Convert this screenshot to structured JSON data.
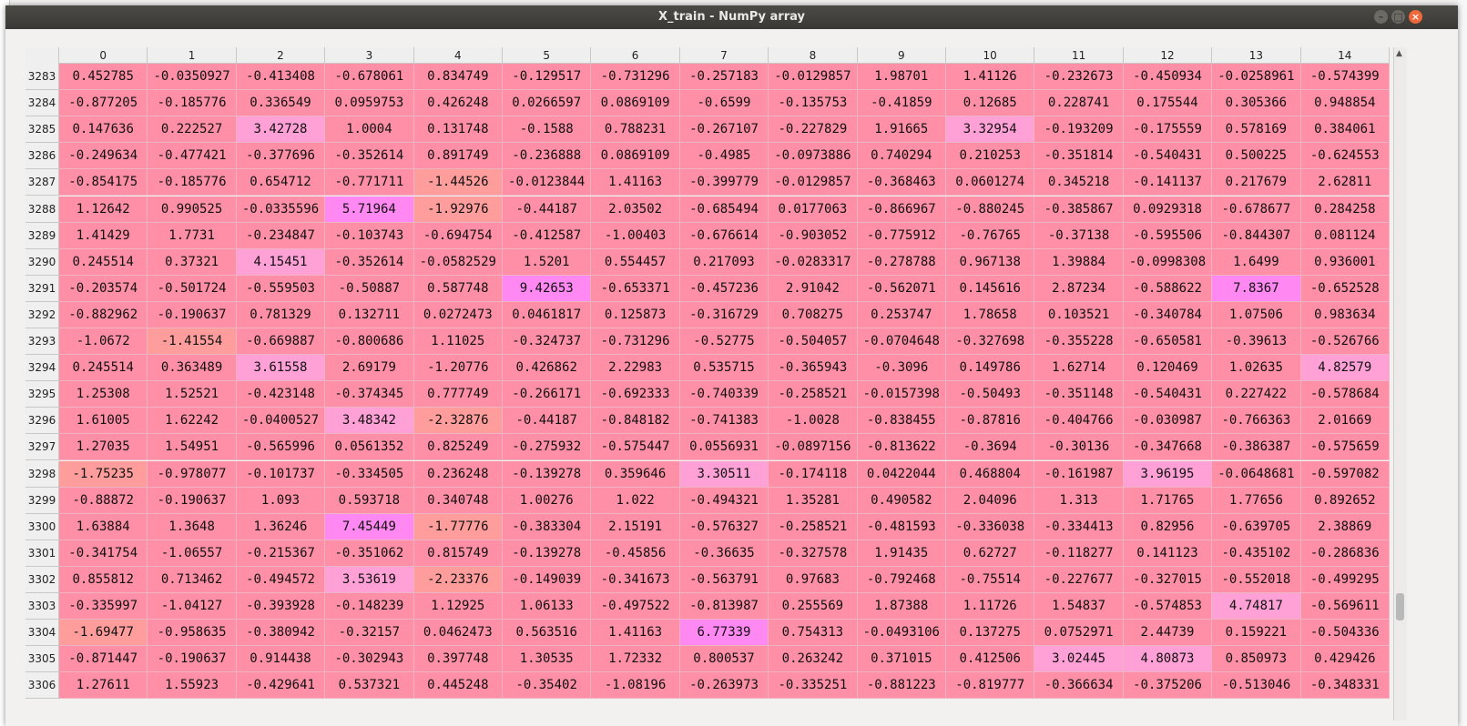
{
  "window": {
    "title": "X_train - NumPy array"
  },
  "colors": {
    "base": "#ff8fa6",
    "low": "#ff9d9d",
    "high": "#ffa0d6",
    "max": "#ff88f2",
    "titlebar": "#3e3d39"
  },
  "icons": {
    "minimize": "minimize-icon",
    "maximize": "maximize-icon",
    "close": "close-icon"
  },
  "columns": [
    "0",
    "1",
    "2",
    "3",
    "4",
    "5",
    "6",
    "7",
    "8",
    "9",
    "10",
    "11",
    "12",
    "13",
    "14"
  ],
  "rows": [
    {
      "index": "3283",
      "values": [
        "0.452785",
        "-0.0350927",
        "-0.413408",
        "-0.678061",
        "0.834749",
        "-0.129517",
        "-0.731296",
        "-0.257183",
        "-0.0129857",
        "1.98701",
        "1.41126",
        "-0.232673",
        "-0.450934",
        "-0.0258961",
        "-0.574399"
      ]
    },
    {
      "index": "3284",
      "values": [
        "-0.877205",
        "-0.185776",
        "0.336549",
        "0.0959753",
        "0.426248",
        "0.0266597",
        "0.0869109",
        "-0.6599",
        "-0.135753",
        "-0.41859",
        "0.12685",
        "0.228741",
        "0.175544",
        "0.305366",
        "0.948854"
      ]
    },
    {
      "index": "3285",
      "values": [
        "0.147636",
        "0.222527",
        "3.42728",
        "1.0004",
        "0.131748",
        "-0.1588",
        "0.788231",
        "-0.267107",
        "-0.227829",
        "1.91665",
        "3.32954",
        "-0.193209",
        "-0.175559",
        "0.578169",
        "0.384061"
      ]
    },
    {
      "index": "3286",
      "values": [
        "-0.249634",
        "-0.477421",
        "-0.377696",
        "-0.352614",
        "0.891749",
        "-0.236888",
        "0.0869109",
        "-0.4985",
        "-0.0973886",
        "0.740294",
        "0.210253",
        "-0.351814",
        "-0.540431",
        "0.500225",
        "-0.624553"
      ]
    },
    {
      "index": "3287",
      "values": [
        "-0.854175",
        "-0.185776",
        "0.654712",
        "-0.771711",
        "-1.44526",
        "-0.0123844",
        "1.41163",
        "-0.399779",
        "-0.0129857",
        "-0.368463",
        "0.0601274",
        "0.345218",
        "-0.141137",
        "0.217679",
        "2.62811"
      ]
    },
    {
      "index": "3288",
      "values": [
        "1.12642",
        "0.990525",
        "-0.0335596",
        "5.71964",
        "-1.92976",
        "-0.44187",
        "2.03502",
        "-0.685494",
        "0.0177063",
        "-0.866967",
        "-0.880245",
        "-0.385867",
        "0.0929318",
        "-0.678677",
        "0.284258"
      ]
    },
    {
      "index": "3289",
      "values": [
        "1.41429",
        "1.7731",
        "-0.234847",
        "-0.103743",
        "-0.694754",
        "-0.412587",
        "-1.00403",
        "-0.676614",
        "-0.903052",
        "-0.775912",
        "-0.76765",
        "-0.37138",
        "-0.595506",
        "-0.844307",
        "0.081124"
      ]
    },
    {
      "index": "3290",
      "values": [
        "0.245514",
        "0.37321",
        "4.15451",
        "-0.352614",
        "-0.0582529",
        "1.5201",
        "0.554457",
        "0.217093",
        "-0.0283317",
        "-0.278788",
        "0.967138",
        "1.39884",
        "-0.0998308",
        "1.6499",
        "0.936001"
      ]
    },
    {
      "index": "3291",
      "values": [
        "-0.203574",
        "-0.501724",
        "-0.559503",
        "-0.50887",
        "0.587748",
        "9.42653",
        "-0.653371",
        "-0.457236",
        "2.91042",
        "-0.562071",
        "0.145616",
        "2.87234",
        "-0.588622",
        "7.8367",
        "-0.652528"
      ]
    },
    {
      "index": "3292",
      "values": [
        "-0.882962",
        "-0.190637",
        "0.781329",
        "0.132711",
        "0.0272473",
        "0.0461817",
        "0.125873",
        "-0.316729",
        "0.708275",
        "0.253747",
        "1.78658",
        "0.103521",
        "-0.340784",
        "1.07506",
        "0.983634"
      ]
    },
    {
      "index": "3293",
      "values": [
        "-1.0672",
        "-1.41554",
        "-0.669887",
        "-0.800686",
        "1.11025",
        "-0.324737",
        "-0.731296",
        "-0.52775",
        "-0.504057",
        "-0.0704648",
        "-0.327698",
        "-0.355228",
        "-0.650581",
        "-0.39613",
        "-0.526766"
      ]
    },
    {
      "index": "3294",
      "values": [
        "0.245514",
        "0.363489",
        "3.61558",
        "2.69179",
        "-1.20776",
        "0.426862",
        "2.22983",
        "0.535715",
        "-0.365943",
        "-0.3096",
        "0.149786",
        "1.62714",
        "0.120469",
        "1.02635",
        "4.82579"
      ]
    },
    {
      "index": "3295",
      "values": [
        "1.25308",
        "1.52521",
        "-0.423148",
        "-0.374345",
        "0.777749",
        "-0.266171",
        "-0.692333",
        "-0.740339",
        "-0.258521",
        "-0.0157398",
        "-0.50493",
        "-0.351148",
        "-0.540431",
        "0.227422",
        "-0.578684"
      ]
    },
    {
      "index": "3296",
      "values": [
        "1.61005",
        "1.62242",
        "-0.0400527",
        "3.48342",
        "-2.32876",
        "-0.44187",
        "-0.848182",
        "-0.741383",
        "-1.0028",
        "-0.838455",
        "-0.87816",
        "-0.404766",
        "-0.030987",
        "-0.766363",
        "2.01669"
      ]
    },
    {
      "index": "3297",
      "values": [
        "1.27035",
        "1.54951",
        "-0.565996",
        "0.0561352",
        "0.825249",
        "-0.275932",
        "-0.575447",
        "0.0556931",
        "-0.0897156",
        "-0.813622",
        "-0.3694",
        "-0.30136",
        "-0.347668",
        "-0.386387",
        "-0.575659"
      ]
    },
    {
      "index": "3298",
      "values": [
        "-1.75235",
        "-0.978077",
        "-0.101737",
        "-0.334505",
        "0.236248",
        "-0.139278",
        "0.359646",
        "3.30511",
        "-0.174118",
        "0.0422044",
        "0.468804",
        "-0.161987",
        "3.96195",
        "-0.0648681",
        "-0.597082"
      ]
    },
    {
      "index": "3299",
      "values": [
        "-0.88872",
        "-0.190637",
        "1.093",
        "0.593718",
        "0.340748",
        "1.00276",
        "1.022",
        "-0.494321",
        "1.35281",
        "0.490582",
        "2.04096",
        "1.313",
        "1.71765",
        "1.77656",
        "0.892652"
      ]
    },
    {
      "index": "3300",
      "values": [
        "1.63884",
        "1.3648",
        "1.36246",
        "7.45449",
        "-1.77776",
        "-0.383304",
        "2.15191",
        "-0.576327",
        "-0.258521",
        "-0.481593",
        "-0.336038",
        "-0.334413",
        "0.82956",
        "-0.639705",
        "2.38869"
      ]
    },
    {
      "index": "3301",
      "values": [
        "-0.341754",
        "-1.06557",
        "-0.215367",
        "-0.351062",
        "0.815749",
        "-0.139278",
        "-0.45856",
        "-0.36635",
        "-0.327578",
        "1.91435",
        "0.62727",
        "-0.118277",
        "0.141123",
        "-0.435102",
        "-0.286836"
      ]
    },
    {
      "index": "3302",
      "values": [
        "0.855812",
        "0.713462",
        "-0.494572",
        "3.53619",
        "-2.23376",
        "-0.149039",
        "-0.341673",
        "-0.563791",
        "0.97683",
        "-0.792468",
        "-0.75514",
        "-0.227677",
        "-0.327015",
        "-0.552018",
        "-0.499295"
      ]
    },
    {
      "index": "3303",
      "values": [
        "-0.335997",
        "-1.04127",
        "-0.393928",
        "-0.148239",
        "1.12925",
        "1.06133",
        "-0.497522",
        "-0.813987",
        "0.255569",
        "1.87388",
        "1.11726",
        "1.54837",
        "-0.574853",
        "4.74817",
        "-0.569611"
      ]
    },
    {
      "index": "3304",
      "values": [
        "-1.69477",
        "-0.958635",
        "-0.380942",
        "-0.32157",
        "0.0462473",
        "0.563516",
        "1.41163",
        "6.77339",
        "0.754313",
        "-0.0493106",
        "0.137275",
        "0.0752971",
        "2.44739",
        "0.159221",
        "-0.504336"
      ]
    },
    {
      "index": "3305",
      "values": [
        "-0.871447",
        "-0.190637",
        "0.914438",
        "-0.302943",
        "0.397748",
        "1.30535",
        "1.72332",
        "0.800537",
        "0.263242",
        "0.371015",
        "0.412506",
        "3.02445",
        "4.80873",
        "0.850973",
        "0.429426"
      ]
    },
    {
      "index": "3306",
      "values": [
        "1.27611",
        "1.55923",
        "-0.429641",
        "0.537321",
        "0.445248",
        "-0.35402",
        "-1.08196",
        "-0.263973",
        "-0.335251",
        "-0.881223",
        "-0.819777",
        "-0.366634",
        "-0.375206",
        "-0.513046",
        "-0.348331"
      ]
    }
  ]
}
